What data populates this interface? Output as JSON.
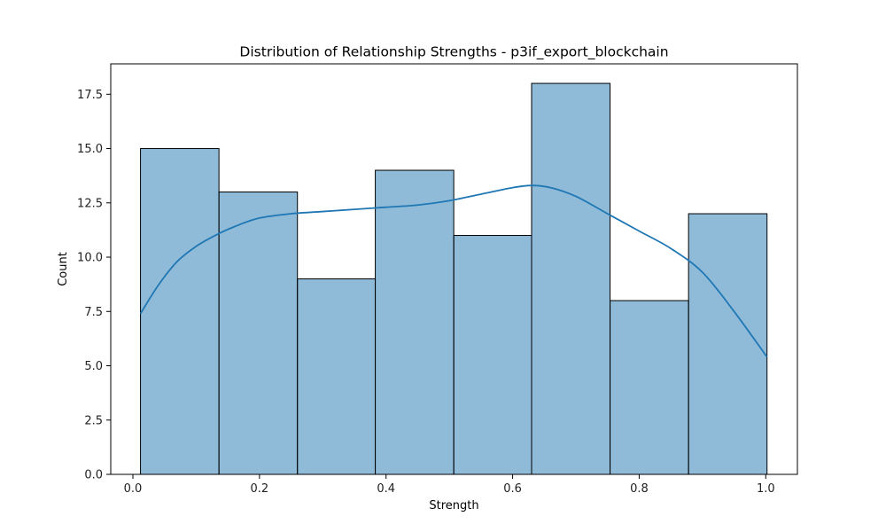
{
  "chart_data": {
    "type": "bar",
    "title": "Distribution of Relationship Strengths - p3if_export_blockchain",
    "xlabel": "Strength",
    "ylabel": "Count",
    "xlim": [
      -0.035,
      1.05
    ],
    "ylim": [
      0,
      18.9
    ],
    "x_ticks": [
      0.0,
      0.2,
      0.4,
      0.6,
      0.8,
      1.0
    ],
    "x_tick_labels": [
      "0.0",
      "0.2",
      "0.4",
      "0.6",
      "0.8",
      "1.0"
    ],
    "y_ticks": [
      0,
      2.5,
      5,
      7.5,
      10,
      12.5,
      15,
      17.5
    ],
    "y_tick_labels": [
      "0.0",
      "2.5",
      "5.0",
      "7.5",
      "10.0",
      "12.5",
      "15.0",
      "17.5"
    ],
    "bins": [
      {
        "start": 0.012,
        "end": 0.136,
        "count": 15
      },
      {
        "start": 0.136,
        "end": 0.26,
        "count": 13
      },
      {
        "start": 0.26,
        "end": 0.383,
        "count": 9
      },
      {
        "start": 0.383,
        "end": 0.507,
        "count": 14
      },
      {
        "start": 0.507,
        "end": 0.63,
        "count": 11
      },
      {
        "start": 0.63,
        "end": 0.754,
        "count": 18
      },
      {
        "start": 0.754,
        "end": 0.878,
        "count": 8
      },
      {
        "start": 0.878,
        "end": 1.002,
        "count": 12
      }
    ],
    "kde": {
      "x": [
        0.012,
        0.04,
        0.07,
        0.1,
        0.13,
        0.16,
        0.2,
        0.25,
        0.3,
        0.35,
        0.4,
        0.45,
        0.5,
        0.55,
        0.6,
        0.63,
        0.66,
        0.7,
        0.75,
        0.8,
        0.85,
        0.9,
        0.95,
        1.002
      ],
      "y": [
        7.4,
        8.7,
        9.8,
        10.5,
        11.0,
        11.4,
        11.8,
        12.0,
        12.1,
        12.2,
        12.3,
        12.4,
        12.6,
        12.9,
        13.2,
        13.3,
        13.2,
        12.8,
        12.0,
        11.2,
        10.4,
        9.3,
        7.5,
        5.4
      ]
    },
    "bar_color": "#1f77b4",
    "bar_fill": "rgba(31,119,180,0.5)",
    "bar_edge": "#000000",
    "line_color": "#1f77b4",
    "grid": false,
    "legend": "none"
  }
}
